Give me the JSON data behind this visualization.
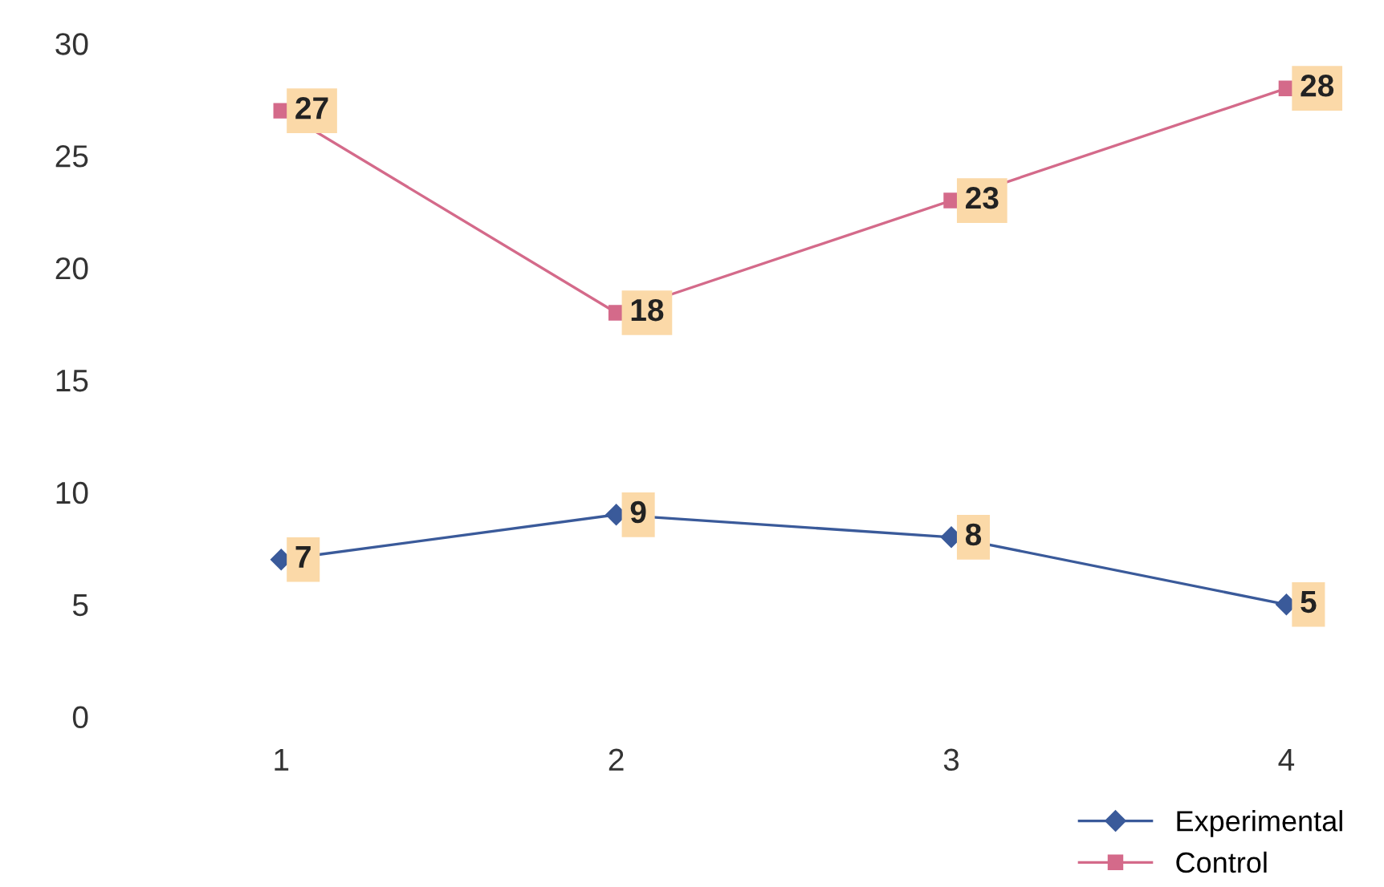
{
  "chart_data": {
    "type": "line",
    "categories": [
      "1",
      "2",
      "3",
      "4"
    ],
    "series": [
      {
        "name": "Experimental",
        "color": "#3a5a9a",
        "values": [
          7,
          9,
          8,
          5
        ],
        "marker": "diamond"
      },
      {
        "name": "Control",
        "color": "#d46a8a",
        "values": [
          27,
          18,
          23,
          28
        ],
        "marker": "square"
      }
    ],
    "ylim": [
      0,
      30
    ],
    "yticks": [
      0,
      5,
      10,
      15,
      20,
      25,
      30
    ],
    "grid": false,
    "legend": "bottom right",
    "data_labels": true
  }
}
